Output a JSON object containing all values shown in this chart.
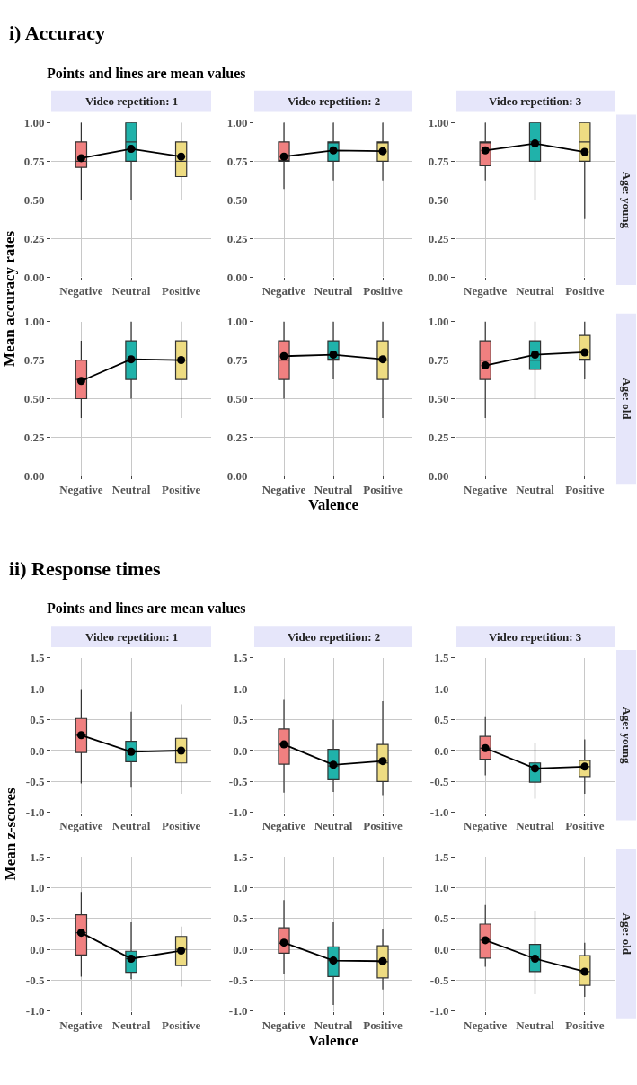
{
  "chart_data": [
    {
      "type": "other",
      "title": "i) Accuracy",
      "subtitle": "Points and lines are mean values"
    },
    {
      "type": "box",
      "title": "Video repetition: 1",
      "ylabel": "Mean accuracy rates",
      "categories": [
        "Negative",
        "Neutral",
        "Positive"
      ],
      "colors": [
        "#f08080",
        "#20b2aa",
        "#eedc82"
      ],
      "ylim": [
        0,
        1
      ],
      "yticks": [
        {
          "value": 0,
          "label": "0.00"
        },
        {
          "value": 0.25,
          "label": "0.25"
        },
        {
          "value": 0.5,
          "label": "0.50"
        },
        {
          "value": 0.75,
          "label": "0.75"
        },
        {
          "value": 1,
          "label": "1.00"
        }
      ],
      "grid": true,
      "marker": "circle",
      "boxes": [
        {
          "low": 0.5,
          "q1": 0.71,
          "median": 0.75,
          "q3": 0.875,
          "high": 1.0
        },
        {
          "low": 0.5,
          "q1": 0.75,
          "median": 0.875,
          "q3": 1.0,
          "high": 1.0
        },
        {
          "low": 0.5,
          "q1": 0.65,
          "median": 0.75,
          "q3": 0.875,
          "high": 1.0
        }
      ],
      "series": [
        {
          "type": "line",
          "color": "#000000",
          "values": [
            0.77,
            0.83,
            0.78
          ]
        }
      ]
    },
    {
      "type": "box",
      "title": "Video repetition: 2",
      "categories": [
        "Negative",
        "Neutral",
        "Positive"
      ],
      "colors": [
        "#f08080",
        "#20b2aa",
        "#eedc82"
      ],
      "ylim": [
        0,
        1
      ],
      "yticks": [
        {
          "value": 0,
          "label": "0.00"
        },
        {
          "value": 0.25,
          "label": "0.25"
        },
        {
          "value": 0.5,
          "label": "0.50"
        },
        {
          "value": 0.75,
          "label": "0.75"
        },
        {
          "value": 1,
          "label": "1.00"
        }
      ],
      "grid": true,
      "marker": "circle",
      "boxes": [
        {
          "low": 0.57,
          "q1": 0.75,
          "median": 0.75,
          "q3": 0.875,
          "high": 1.0
        },
        {
          "low": 0.625,
          "q1": 0.75,
          "median": 0.875,
          "q3": 0.875,
          "high": 1.0
        },
        {
          "low": 0.625,
          "q1": 0.75,
          "median": 0.875,
          "q3": 0.875,
          "high": 1.0
        }
      ],
      "series": [
        {
          "type": "line",
          "color": "#000000",
          "values": [
            0.78,
            0.82,
            0.815
          ]
        }
      ]
    },
    {
      "type": "box",
      "title": "Video repetition: 3",
      "annotations": [
        "Age: young"
      ],
      "categories": [
        "Negative",
        "Neutral",
        "Positive"
      ],
      "colors": [
        "#f08080",
        "#20b2aa",
        "#eedc82"
      ],
      "ylim": [
        0,
        1
      ],
      "yticks": [
        {
          "value": 0,
          "label": "0.00"
        },
        {
          "value": 0.25,
          "label": "0.25"
        },
        {
          "value": 0.5,
          "label": "0.50"
        },
        {
          "value": 0.75,
          "label": "0.75"
        },
        {
          "value": 1,
          "label": "1.00"
        }
      ],
      "grid": true,
      "marker": "circle",
      "boxes": [
        {
          "low": 0.625,
          "q1": 0.72,
          "median": 0.875,
          "q3": 0.875,
          "high": 1.0
        },
        {
          "low": 0.5,
          "q1": 0.75,
          "median": 0.875,
          "q3": 1.0,
          "high": 1.0
        },
        {
          "low": 0.375,
          "q1": 0.75,
          "median": 0.875,
          "q3": 1.0,
          "high": 1.0
        }
      ],
      "series": [
        {
          "type": "line",
          "color": "#000000",
          "values": [
            0.82,
            0.865,
            0.81
          ]
        }
      ]
    },
    {
      "type": "box",
      "categories": [
        "Negative",
        "Neutral",
        "Positive"
      ],
      "colors": [
        "#f08080",
        "#20b2aa",
        "#eedc82"
      ],
      "ylim": [
        0,
        1
      ],
      "yticks": [
        {
          "value": 0,
          "label": "0.00"
        },
        {
          "value": 0.25,
          "label": "0.25"
        },
        {
          "value": 0.5,
          "label": "0.50"
        },
        {
          "value": 0.75,
          "label": "0.75"
        },
        {
          "value": 1,
          "label": "1.00"
        }
      ],
      "grid": true,
      "marker": "circle",
      "boxes": [
        {
          "low": 0.375,
          "q1": 0.5,
          "median": 0.625,
          "q3": 0.75,
          "high": 0.875
        },
        {
          "low": 0.5,
          "q1": 0.625,
          "median": 0.75,
          "q3": 0.875,
          "high": 1.0
        },
        {
          "low": 0.375,
          "q1": 0.625,
          "median": 0.75,
          "q3": 0.875,
          "high": 1.0
        }
      ],
      "series": [
        {
          "type": "line",
          "color": "#000000",
          "values": [
            0.615,
            0.755,
            0.75
          ]
        }
      ]
    },
    {
      "type": "box",
      "xlabel": "Valence",
      "categories": [
        "Negative",
        "Neutral",
        "Positive"
      ],
      "colors": [
        "#f08080",
        "#20b2aa",
        "#eedc82"
      ],
      "ylim": [
        0,
        1
      ],
      "yticks": [
        {
          "value": 0,
          "label": "0.00"
        },
        {
          "value": 0.25,
          "label": "0.25"
        },
        {
          "value": 0.5,
          "label": "0.50"
        },
        {
          "value": 0.75,
          "label": "0.75"
        },
        {
          "value": 1,
          "label": "1.00"
        }
      ],
      "grid": true,
      "marker": "circle",
      "boxes": [
        {
          "low": 0.5,
          "q1": 0.625,
          "median": 0.75,
          "q3": 0.875,
          "high": 1.0
        },
        {
          "low": 0.625,
          "q1": 0.75,
          "median": 0.75,
          "q3": 0.875,
          "high": 1.0
        },
        {
          "low": 0.375,
          "q1": 0.625,
          "median": 0.75,
          "q3": 0.875,
          "high": 1.0
        }
      ],
      "series": [
        {
          "type": "line",
          "color": "#000000",
          "values": [
            0.775,
            0.785,
            0.755
          ]
        }
      ]
    },
    {
      "type": "box",
      "annotations": [
        "Age: old"
      ],
      "categories": [
        "Negative",
        "Neutral",
        "Positive"
      ],
      "colors": [
        "#f08080",
        "#20b2aa",
        "#eedc82"
      ],
      "ylim": [
        0,
        1
      ],
      "yticks": [
        {
          "value": 0,
          "label": "0.00"
        },
        {
          "value": 0.25,
          "label": "0.25"
        },
        {
          "value": 0.5,
          "label": "0.50"
        },
        {
          "value": 0.75,
          "label": "0.75"
        },
        {
          "value": 1,
          "label": "1.00"
        }
      ],
      "grid": true,
      "marker": "circle",
      "boxes": [
        {
          "low": 0.375,
          "q1": 0.625,
          "median": 0.75,
          "q3": 0.875,
          "high": 1.0
        },
        {
          "low": 0.5,
          "q1": 0.69,
          "median": 0.75,
          "q3": 0.875,
          "high": 1.0
        },
        {
          "low": 0.625,
          "q1": 0.75,
          "median": 0.75,
          "q3": 0.91,
          "high": 1.0
        }
      ],
      "series": [
        {
          "type": "line",
          "color": "#000000",
          "values": [
            0.715,
            0.785,
            0.8
          ]
        }
      ]
    },
    {
      "type": "other",
      "title": "ii) Response times",
      "subtitle": "Points and lines are mean values"
    },
    {
      "type": "box",
      "title": "Video repetition: 1",
      "ylabel": "Mean z-scores",
      "categories": [
        "Negative",
        "Neutral",
        "Positive"
      ],
      "colors": [
        "#f08080",
        "#20b2aa",
        "#eedc82"
      ],
      "ylim": [
        -1,
        1.5
      ],
      "yticks": [
        {
          "value": -1,
          "label": "-1.0"
        },
        {
          "value": -0.5,
          "label": "-0.5"
        },
        {
          "value": 0,
          "label": "0.0"
        },
        {
          "value": 0.5,
          "label": "0.5"
        },
        {
          "value": 1,
          "label": "1.0"
        },
        {
          "value": 1.5,
          "label": "1.5"
        }
      ],
      "grid": true,
      "marker": "circle",
      "boxes": [
        {
          "low": -0.53,
          "q1": -0.03,
          "median": 0.25,
          "q3": 0.52,
          "high": 0.98
        },
        {
          "low": -0.6,
          "q1": -0.18,
          "median": 0.0,
          "q3": 0.15,
          "high": 0.63
        },
        {
          "low": -0.7,
          "q1": -0.2,
          "median": 0.0,
          "q3": 0.2,
          "high": 0.75
        }
      ],
      "series": [
        {
          "type": "line",
          "color": "#000000",
          "values": [
            0.25,
            -0.02,
            0.0
          ]
        }
      ]
    },
    {
      "type": "box",
      "title": "Video repetition: 2",
      "categories": [
        "Negative",
        "Neutral",
        "Positive"
      ],
      "colors": [
        "#f08080",
        "#20b2aa",
        "#eedc82"
      ],
      "ylim": [
        -1,
        1.5
      ],
      "yticks": [
        {
          "value": -1,
          "label": "-1.0"
        },
        {
          "value": -0.5,
          "label": "-0.5"
        },
        {
          "value": 0,
          "label": "0.0"
        },
        {
          "value": 0.5,
          "label": "0.5"
        },
        {
          "value": 1,
          "label": "1.0"
        },
        {
          "value": 1.5,
          "label": "1.5"
        }
      ],
      "grid": true,
      "marker": "circle",
      "boxes": [
        {
          "low": -0.68,
          "q1": -0.22,
          "median": 0.1,
          "q3": 0.35,
          "high": 0.82
        },
        {
          "low": -0.67,
          "q1": -0.47,
          "median": -0.25,
          "q3": 0.02,
          "high": 0.5
        },
        {
          "low": -0.72,
          "q1": -0.5,
          "median": -0.2,
          "q3": 0.1,
          "high": 0.8
        }
      ],
      "series": [
        {
          "type": "line",
          "color": "#000000",
          "values": [
            0.1,
            -0.23,
            -0.17
          ]
        }
      ]
    },
    {
      "type": "box",
      "title": "Video repetition: 3",
      "annotations": [
        "Age: young"
      ],
      "categories": [
        "Negative",
        "Neutral",
        "Positive"
      ],
      "colors": [
        "#f08080",
        "#20b2aa",
        "#eedc82"
      ],
      "ylim": [
        -1,
        1.5
      ],
      "yticks": [
        {
          "value": -1,
          "label": "-1.0"
        },
        {
          "value": -0.5,
          "label": "-0.5"
        },
        {
          "value": 0,
          "label": "0.0"
        },
        {
          "value": 0.5,
          "label": "0.5"
        },
        {
          "value": 1,
          "label": "1.0"
        },
        {
          "value": 1.5,
          "label": "1.5"
        }
      ],
      "grid": true,
      "marker": "circle",
      "boxes": [
        {
          "low": -0.4,
          "q1": -0.14,
          "median": 0.04,
          "q3": 0.23,
          "high": 0.54
        },
        {
          "low": -0.78,
          "q1": -0.51,
          "median": -0.3,
          "q3": -0.2,
          "high": 0.12
        },
        {
          "low": -0.7,
          "q1": -0.42,
          "median": -0.26,
          "q3": -0.16,
          "high": 0.18
        }
      ],
      "series": [
        {
          "type": "line",
          "color": "#000000",
          "values": [
            0.04,
            -0.29,
            -0.26
          ]
        }
      ]
    },
    {
      "type": "box",
      "categories": [
        "Negative",
        "Neutral",
        "Positive"
      ],
      "colors": [
        "#f08080",
        "#20b2aa",
        "#eedc82"
      ],
      "ylim": [
        -1,
        1.5
      ],
      "yticks": [
        {
          "value": -1,
          "label": "-1.0"
        },
        {
          "value": -0.5,
          "label": "-0.5"
        },
        {
          "value": 0,
          "label": "0.0"
        },
        {
          "value": 0.5,
          "label": "0.5"
        },
        {
          "value": 1,
          "label": "1.0"
        },
        {
          "value": 1.5,
          "label": "1.5"
        }
      ],
      "grid": true,
      "marker": "circle",
      "boxes": [
        {
          "low": -0.44,
          "q1": -0.09,
          "median": 0.27,
          "q3": 0.56,
          "high": 0.93
        },
        {
          "low": -0.48,
          "q1": -0.37,
          "median": -0.15,
          "q3": -0.03,
          "high": 0.44
        },
        {
          "low": -0.6,
          "q1": -0.26,
          "median": 0.0,
          "q3": 0.21,
          "high": 0.37
        }
      ],
      "series": [
        {
          "type": "line",
          "color": "#000000",
          "values": [
            0.27,
            -0.15,
            -0.02
          ]
        }
      ]
    },
    {
      "type": "box",
      "xlabel": "Valence",
      "categories": [
        "Negative",
        "Neutral",
        "Positive"
      ],
      "colors": [
        "#f08080",
        "#20b2aa",
        "#eedc82"
      ],
      "ylim": [
        -1,
        1.5
      ],
      "yticks": [
        {
          "value": -1,
          "label": "-1.0"
        },
        {
          "value": -0.5,
          "label": "-0.5"
        },
        {
          "value": 0,
          "label": "0.0"
        },
        {
          "value": 0.5,
          "label": "0.5"
        },
        {
          "value": 1,
          "label": "1.0"
        },
        {
          "value": 1.5,
          "label": "1.5"
        }
      ],
      "grid": true,
      "marker": "circle",
      "boxes": [
        {
          "low": -0.4,
          "q1": -0.06,
          "median": 0.1,
          "q3": 0.35,
          "high": 0.8
        },
        {
          "low": -0.9,
          "q1": -0.44,
          "median": -0.18,
          "q3": 0.04,
          "high": 0.44
        },
        {
          "low": -0.65,
          "q1": -0.46,
          "median": -0.2,
          "q3": 0.06,
          "high": 0.33
        }
      ],
      "series": [
        {
          "type": "line",
          "color": "#000000",
          "values": [
            0.11,
            -0.18,
            -0.19
          ]
        }
      ]
    },
    {
      "type": "box",
      "annotations": [
        "Age: old"
      ],
      "categories": [
        "Negative",
        "Neutral",
        "Positive"
      ],
      "colors": [
        "#f08080",
        "#20b2aa",
        "#eedc82"
      ],
      "ylim": [
        -1,
        1.5
      ],
      "yticks": [
        {
          "value": -1,
          "label": "-1.0"
        },
        {
          "value": -0.5,
          "label": "-0.5"
        },
        {
          "value": 0,
          "label": "0.0"
        },
        {
          "value": 0.5,
          "label": "0.5"
        },
        {
          "value": 1,
          "label": "1.0"
        },
        {
          "value": 1.5,
          "label": "1.5"
        }
      ],
      "grid": true,
      "marker": "circle",
      "boxes": [
        {
          "low": -0.28,
          "q1": -0.14,
          "median": 0.15,
          "q3": 0.41,
          "high": 0.72
        },
        {
          "low": -0.73,
          "q1": -0.36,
          "median": -0.15,
          "q3": 0.08,
          "high": 0.63
        },
        {
          "low": -0.77,
          "q1": -0.58,
          "median": -0.36,
          "q3": -0.1,
          "high": 0.11
        }
      ],
      "series": [
        {
          "type": "line",
          "color": "#000000",
          "values": [
            0.15,
            -0.15,
            -0.36
          ]
        }
      ]
    }
  ]
}
